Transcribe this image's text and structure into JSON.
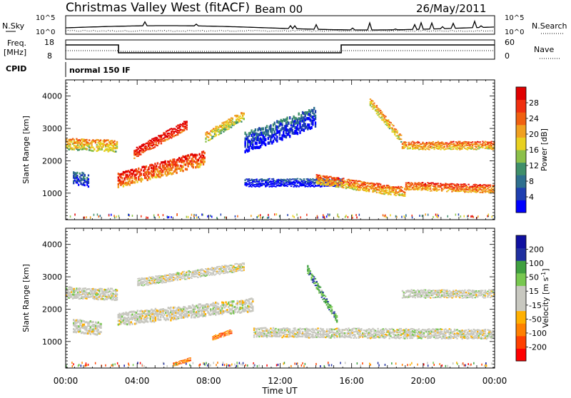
{
  "header": {
    "station": "Christmas Valley West (fitACF)",
    "beam": "Beam 00",
    "date": "26/May/2011"
  },
  "noise_panel": {
    "left_label": "N.Sky",
    "left_ticks": [
      "10^5",
      "10^0"
    ],
    "right_label": "N.Search",
    "right_ticks": [
      "10^5",
      "10^0"
    ]
  },
  "freq_panel": {
    "left_label_1": "Freq.",
    "left_label_2": "[MHz]",
    "left_ticks": [
      "18",
      "8"
    ],
    "right_label": "Nave",
    "right_ticks": [
      "60",
      "0"
    ],
    "cpid_label": "CPID",
    "cpid_text": "normal 150 IF"
  },
  "colors": {
    "power_scale": [
      "#0000ff",
      "#1f3fb0",
      "#2e6f8e",
      "#3f8f6a",
      "#8cc04a",
      "#e8d020",
      "#f0a020",
      "#f06010",
      "#f03010",
      "#e00000"
    ],
    "velocity_scale": [
      "#ff0000",
      "#ff4000",
      "#ff8000",
      "#ffb000",
      "#c8c8c0",
      "#c8c8c0",
      "#78c850",
      "#40a040",
      "#2030a0",
      "#1010a0"
    ]
  },
  "chart_data": [
    {
      "type": "heatmap",
      "name": "power",
      "xlabel": "",
      "ylabel": "Slant Range [km]",
      "xlim": [
        0,
        24
      ],
      "ylim": [
        180,
        4500
      ],
      "yticks": [
        1000,
        2000,
        3000,
        4000
      ],
      "colorbar_label": "Power [dB]",
      "colorbar_ticks": [
        "4",
        "8",
        "12",
        "16",
        "20",
        "24",
        "28"
      ],
      "bands": [
        {
          "t": [
            0.0,
            2.9
          ],
          "center": [
            2480,
            2420
          ],
          "width": 350,
          "level": 0.6
        },
        {
          "t": [
            0.4,
            1.3
          ],
          "center": [
            1450,
            1350
          ],
          "width": 400,
          "level": 0.2
        },
        {
          "t": [
            2.9,
            7.8
          ],
          "center": [
            1350,
            2050
          ],
          "width": 450,
          "level": 0.8
        },
        {
          "t": [
            3.8,
            6.8
          ],
          "center": [
            2200,
            3100
          ],
          "width": 300,
          "level": 0.9
        },
        {
          "t": [
            7.8,
            10.0
          ],
          "center": [
            2700,
            3400
          ],
          "width": 300,
          "level": 0.55
        },
        {
          "t": [
            10.0,
            14.0
          ],
          "center": [
            2500,
            3300
          ],
          "width": 600,
          "level": 0.15
        },
        {
          "t": [
            10.0,
            15.5
          ],
          "center": [
            1300,
            1300
          ],
          "width": 250,
          "level": 0.1
        },
        {
          "t": [
            14.0,
            19.0
          ],
          "center": [
            1400,
            1000
          ],
          "width": 300,
          "level": 0.7
        },
        {
          "t": [
            19.0,
            24.0
          ],
          "center": [
            1200,
            1100
          ],
          "width": 250,
          "level": 0.75
        },
        {
          "t": [
            17.0,
            18.8
          ],
          "center": [
            3800,
            2600
          ],
          "width": 250,
          "level": 0.6
        },
        {
          "t": [
            18.8,
            24.0
          ],
          "center": [
            2450,
            2450
          ],
          "width": 250,
          "level": 0.7
        }
      ]
    },
    {
      "type": "heatmap",
      "name": "velocity",
      "xlabel": "Time UT",
      "ylabel": "Slant Range [km]",
      "xlim": [
        0,
        24
      ],
      "ylim": [
        180,
        4500
      ],
      "xticks": [
        "00:00",
        "04:00",
        "08:00",
        "12:00",
        "16:00",
        "20:00",
        "00:00"
      ],
      "yticks": [
        1000,
        2000,
        3000,
        4000
      ],
      "colorbar_label": "Velocity [m s^-1]",
      "colorbar_ticks": [
        "-200",
        "-100",
        "-50",
        "-15",
        "15",
        "50",
        "100",
        "200"
      ],
      "bands": [
        {
          "t": [
            0.0,
            2.9
          ],
          "center": [
            2480,
            2420
          ],
          "width": 350,
          "level": 0.5
        },
        {
          "t": [
            0.4,
            2.0
          ],
          "center": [
            1450,
            1350
          ],
          "width": 400,
          "level": 0.5
        },
        {
          "t": [
            2.9,
            10.5
          ],
          "center": [
            1650,
            2100
          ],
          "width": 400,
          "level": 0.5
        },
        {
          "t": [
            4.0,
            10.0
          ],
          "center": [
            2800,
            3300
          ],
          "width": 250,
          "level": 0.5
        },
        {
          "t": [
            13.5,
            15.2
          ],
          "center": [
            3200,
            1600
          ],
          "width": 250,
          "level": 0.72
        },
        {
          "t": [
            8.2,
            9.3
          ],
          "center": [
            1100,
            1300
          ],
          "width": 150,
          "level": 0.25
        },
        {
          "t": [
            6.0,
            7.0
          ],
          "center": [
            280,
            450
          ],
          "width": 120,
          "level": 0.25
        },
        {
          "t": [
            10.5,
            24.0
          ],
          "center": [
            1250,
            1200
          ],
          "width": 300,
          "level": 0.5
        },
        {
          "t": [
            18.8,
            24.0
          ],
          "center": [
            2450,
            2450
          ],
          "width": 250,
          "level": 0.5
        }
      ]
    }
  ]
}
